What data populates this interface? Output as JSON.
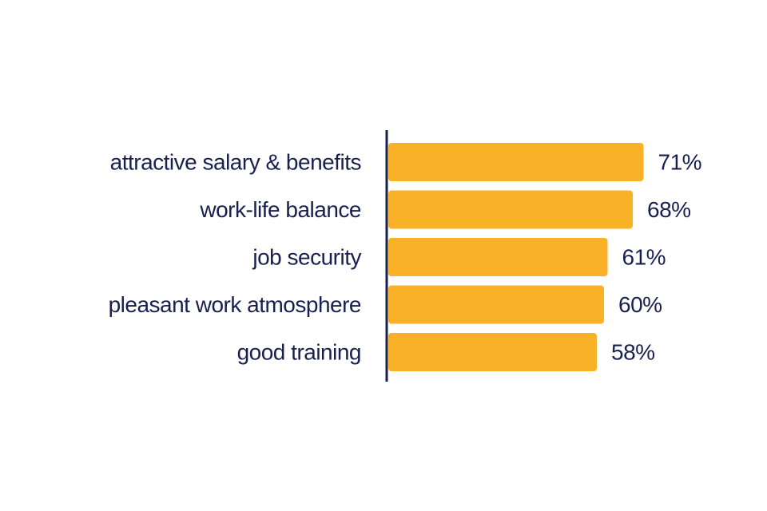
{
  "chart_data": {
    "type": "hbar",
    "categories": [
      "attractive salary & benefits",
      "work-life balance",
      "job security",
      "pleasant work atmosphere",
      "good training"
    ],
    "values": [
      71,
      68,
      61,
      60,
      58
    ],
    "value_labels": [
      "71%",
      "68%",
      "61%",
      "60%",
      "58%"
    ],
    "color": "#f9b128"
  }
}
